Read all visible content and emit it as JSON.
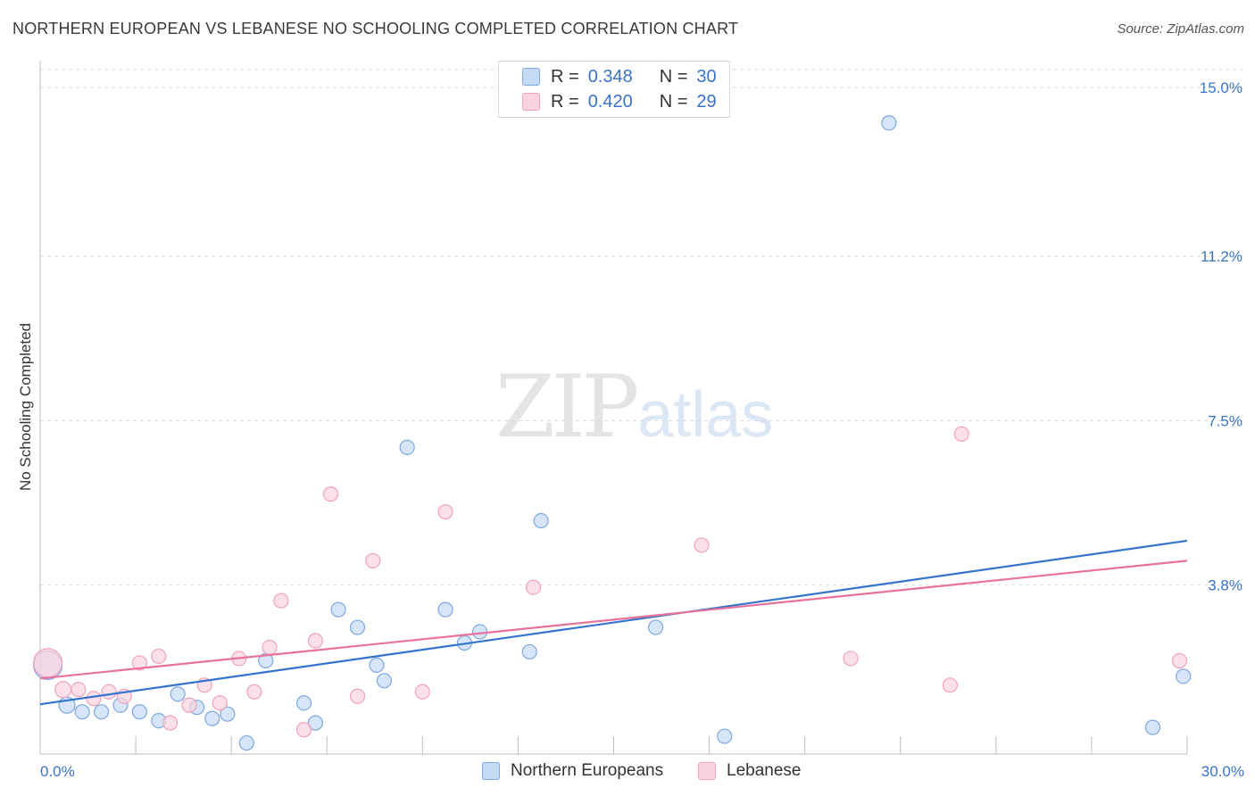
{
  "title": "NORTHERN EUROPEAN VS LEBANESE NO SCHOOLING COMPLETED CORRELATION CHART",
  "source": "Source: ZipAtlas.com",
  "watermark": {
    "zip": "ZIP",
    "atlas": "atlas"
  },
  "legend": {
    "rows": [
      {
        "r_label": "R =",
        "r_value": "0.348",
        "n_label": "N =",
        "n_value": "30"
      },
      {
        "r_label": "R =",
        "r_value": "0.420",
        "n_label": "N =",
        "n_value": "29"
      }
    ]
  },
  "bottom_legend": {
    "series1": "Northern Europeans",
    "series2": "Lebanese"
  },
  "chart_data": {
    "type": "scatter",
    "title": "NORTHERN EUROPEAN VS LEBANESE NO SCHOOLING COMPLETED CORRELATION CHART",
    "ylabel": "No Schooling Completed",
    "xlabel": "",
    "xlim": [
      0,
      30
    ],
    "ylim": [
      0,
      15.4
    ],
    "y_ticks": [
      {
        "value": 3.8,
        "label": "3.8%"
      },
      {
        "value": 7.5,
        "label": "7.5%"
      },
      {
        "value": 11.2,
        "label": "11.2%"
      },
      {
        "value": 15.0,
        "label": "15.0%"
      }
    ],
    "x_tick_labels": {
      "min": "0.0%",
      "max": "30.0%"
    },
    "grid": "horizontal dashed",
    "colors": {
      "series1_fill": "#c5daf5",
      "series1_stroke": "#7fa8df",
      "series1_line": "#3374cc",
      "series2_fill": "#fbd3df",
      "series2_stroke": "#eea3ba",
      "series2_line": "#e8739a",
      "tick_label": "#3b73c4"
    },
    "series": [
      {
        "name": "Northern Europeans",
        "trend": {
          "x0": 0,
          "y0": 1.12,
          "x1": 30,
          "y1": 4.8
        },
        "points": [
          [
            0.2,
            2.0,
            16
          ],
          [
            0.7,
            1.1,
            9
          ],
          [
            1.1,
            0.95,
            8
          ],
          [
            1.6,
            0.95,
            8
          ],
          [
            2.1,
            1.1,
            8
          ],
          [
            2.6,
            0.95,
            8
          ],
          [
            3.1,
            0.75,
            8
          ],
          [
            3.6,
            1.35,
            8
          ],
          [
            4.1,
            1.05,
            8
          ],
          [
            4.5,
            0.8,
            8
          ],
          [
            4.9,
            0.9,
            8
          ],
          [
            5.4,
            0.25,
            8
          ],
          [
            5.9,
            2.1,
            8
          ],
          [
            6.9,
            1.15,
            8
          ],
          [
            7.2,
            0.7,
            8
          ],
          [
            7.8,
            3.25,
            8
          ],
          [
            8.3,
            2.85,
            8
          ],
          [
            8.8,
            2.0,
            8
          ],
          [
            9.0,
            1.65,
            8
          ],
          [
            9.6,
            6.9,
            8
          ],
          [
            10.6,
            3.25,
            8
          ],
          [
            11.1,
            2.5,
            8
          ],
          [
            11.5,
            2.75,
            8
          ],
          [
            12.8,
            2.3,
            8
          ],
          [
            13.1,
            5.25,
            8
          ],
          [
            16.1,
            2.85,
            8
          ],
          [
            17.9,
            0.4,
            8
          ],
          [
            22.2,
            14.2,
            8
          ],
          [
            29.1,
            0.6,
            8
          ],
          [
            29.9,
            1.75,
            8
          ]
        ]
      },
      {
        "name": "Lebanese",
        "trend": {
          "x0": 0,
          "y0": 1.7,
          "x1": 30,
          "y1": 4.35
        },
        "points": [
          [
            0.2,
            2.05,
            16
          ],
          [
            0.6,
            1.45,
            9
          ],
          [
            1.0,
            1.45,
            8
          ],
          [
            1.4,
            1.25,
            8
          ],
          [
            1.8,
            1.4,
            8
          ],
          [
            2.2,
            1.3,
            8
          ],
          [
            2.6,
            2.05,
            8
          ],
          [
            3.1,
            2.2,
            8
          ],
          [
            3.4,
            0.7,
            8
          ],
          [
            3.9,
            1.1,
            8
          ],
          [
            4.3,
            1.55,
            8
          ],
          [
            4.7,
            1.15,
            8
          ],
          [
            5.2,
            2.15,
            8
          ],
          [
            5.6,
            1.4,
            8
          ],
          [
            6.0,
            2.4,
            8
          ],
          [
            6.3,
            3.45,
            8
          ],
          [
            6.9,
            0.55,
            8
          ],
          [
            7.2,
            2.55,
            8
          ],
          [
            7.6,
            5.85,
            8
          ],
          [
            8.3,
            1.3,
            8
          ],
          [
            8.7,
            4.35,
            8
          ],
          [
            10.0,
            1.4,
            8
          ],
          [
            10.6,
            5.45,
            8
          ],
          [
            12.9,
            3.75,
            8
          ],
          [
            17.3,
            4.7,
            8
          ],
          [
            21.2,
            2.15,
            8
          ],
          [
            23.8,
            1.55,
            8
          ],
          [
            24.1,
            7.2,
            8
          ],
          [
            29.8,
            2.1,
            8
          ]
        ]
      }
    ]
  }
}
